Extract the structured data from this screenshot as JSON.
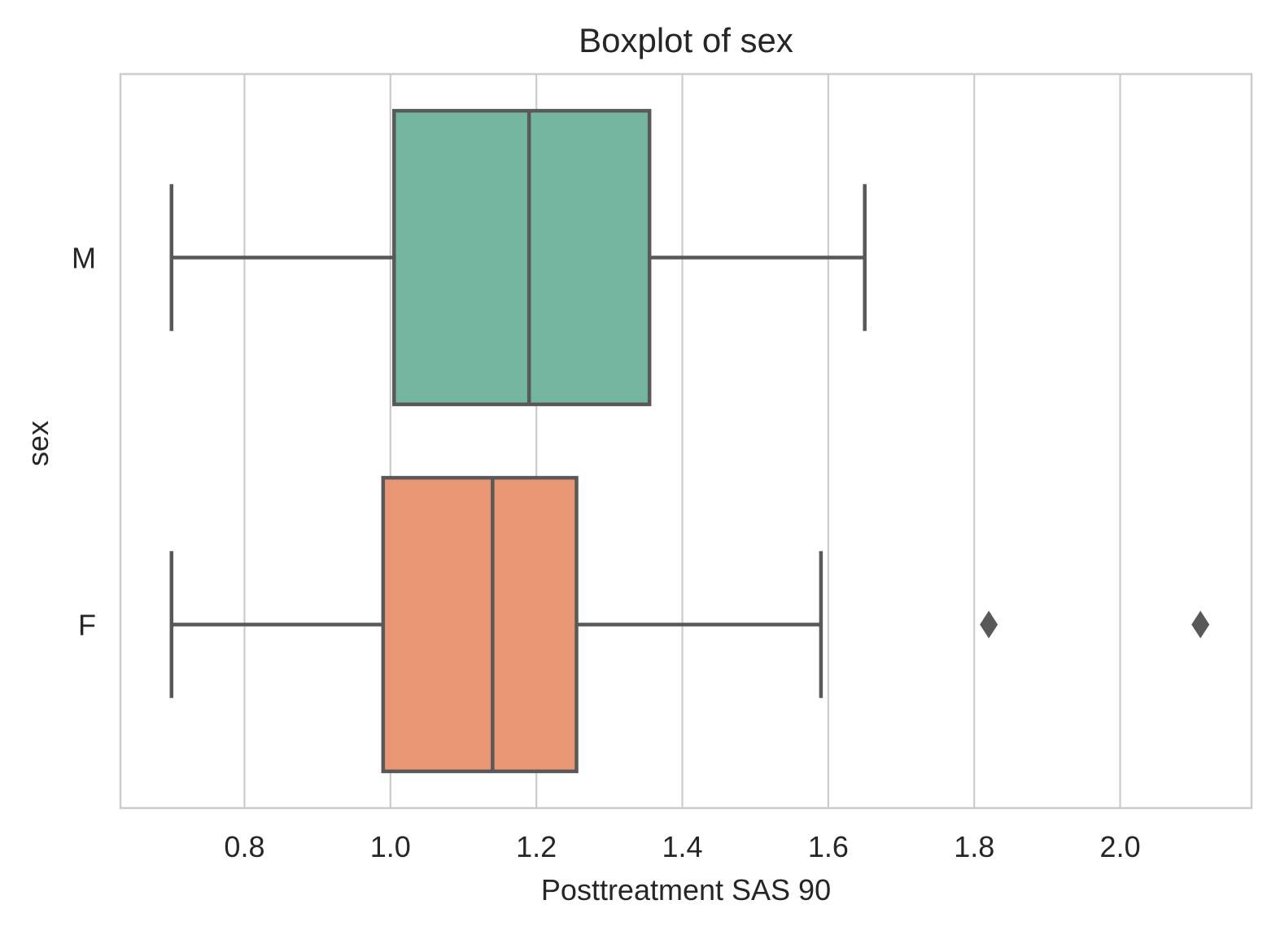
{
  "chart_data": {
    "type": "boxplot",
    "orientation": "horizontal",
    "title": "Boxplot of sex",
    "xlabel": "Posttreatment SAS 90",
    "ylabel": "sex",
    "xlim": [
      0.63,
      2.18
    ],
    "xticks": [
      0.8,
      1.0,
      1.2,
      1.4,
      1.6,
      1.8,
      2.0
    ],
    "xtick_labels": [
      "0.8",
      "1.0",
      "1.2",
      "1.4",
      "1.6",
      "1.8",
      "2.0"
    ],
    "grid": "vertical",
    "categories": [
      "M",
      "F"
    ],
    "boxes": [
      {
        "category": "M",
        "whisker_low": 0.7,
        "q1": 1.005,
        "median": 1.19,
        "q3": 1.355,
        "whisker_high": 1.65,
        "outliers": [],
        "color": "#75b6a0"
      },
      {
        "category": "F",
        "whisker_low": 0.7,
        "q1": 0.99,
        "median": 1.14,
        "q3": 1.255,
        "whisker_high": 1.59,
        "outliers": [
          1.82,
          2.11
        ],
        "color": "#e99675"
      }
    ],
    "line_color": "#595959",
    "grid_color": "#cccccc"
  }
}
